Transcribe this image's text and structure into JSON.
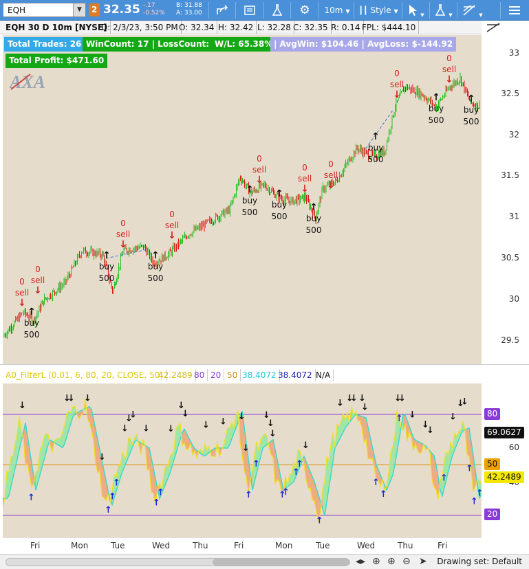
{
  "toolbar": {
    "symbol": "EQH",
    "link_badge": "2",
    "last_price": "32.35",
    "change": "-.17",
    "change_pct": "-0.52%",
    "bid": "B: 31.88",
    "ask": "A: 33.00",
    "timeframe": "10m",
    "style_label": "Style"
  },
  "info": {
    "title": "EQH 30 D 10m [NYSE]",
    "date": "D: 2/3/23, 3:50 PM",
    "open": "O: 32.34",
    "high": "H: 32.42",
    "low": "L: 32.28",
    "close": "C: 32.35",
    "range": "R: 0.14",
    "fpl": "FPL: $444.10"
  },
  "stats": {
    "total_trades": "Total Trades: 26",
    "win_loss_count": "WinCount: 17 | LossCount: 9",
    "wl_pct": "W/L: 65.38%",
    "avg": " | AvgWin: $104.46 | AvgLoss: $-144.92",
    "total_profit": "Total Profit: $471.60"
  },
  "price_axis": [
    "33",
    "32.5",
    "32",
    "31.5",
    "31",
    "30.5",
    "30",
    "29.5"
  ],
  "signals": {
    "sell_label": "sell",
    "sell_qty": "0",
    "buy_label": "buy",
    "buy_qty": "500"
  },
  "oscillator": {
    "name": "A0_FilterL (0.01, 6, 80, 20, CLOSE, 50)",
    "value1": "42.2489",
    "ob": "80",
    "os": "20",
    "mid": "50",
    "value2": "38.4072",
    "value3": "38.4072",
    "value4": "N/A",
    "axis": [
      "80",
      "60",
      "50",
      "40",
      "20"
    ],
    "current_badge": "69.0627",
    "value_badge": "42.2489"
  },
  "time_axis": [
    "Fri",
    "Mon",
    "Tue",
    "Wed",
    "Thu",
    "Fri",
    "Mon",
    "Tue",
    "Wed",
    "Thu",
    "Fri"
  ],
  "bottom": {
    "drawing_set": "Drawing set: Default"
  },
  "colors": {
    "up": "#22c022",
    "down": "#e01818",
    "chart_bg": "#e6dccb",
    "toolbar": "#4a90d9"
  }
}
